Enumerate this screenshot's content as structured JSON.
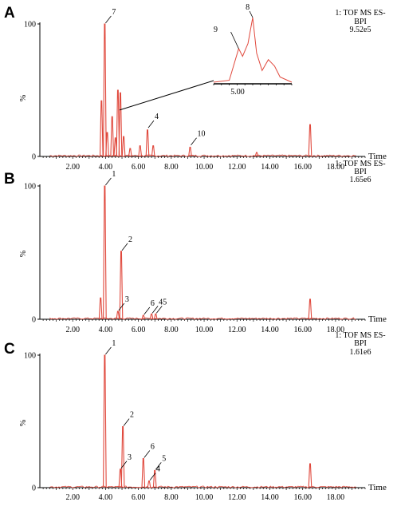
{
  "chart_data": [
    {
      "type": "line",
      "panel_label": "A",
      "info_lines": [
        "1: TOF MS ES-",
        "BPI",
        "9.52e5"
      ],
      "xlabel": "Time",
      "ylabel": "%",
      "xlim": [
        0,
        19.8
      ],
      "ylim": [
        0,
        100
      ],
      "x_ticks": [
        "2.00",
        "4.00",
        "6.00",
        "8.00",
        "10.00",
        "12.00",
        "14.00",
        "16.00",
        "18.00"
      ],
      "y_ticks": [
        "0",
        "100"
      ],
      "peaks": [
        {
          "x": 3.75,
          "y": 42
        },
        {
          "x": 3.95,
          "y": 100
        },
        {
          "x": 4.1,
          "y": 18
        },
        {
          "x": 4.4,
          "y": 30
        },
        {
          "x": 4.6,
          "y": 14
        },
        {
          "x": 4.75,
          "y": 50
        },
        {
          "x": 4.9,
          "y": 48
        },
        {
          "x": 5.1,
          "y": 15
        },
        {
          "x": 5.5,
          "y": 6
        },
        {
          "x": 6.1,
          "y": 8
        },
        {
          "x": 6.55,
          "y": 20
        },
        {
          "x": 6.9,
          "y": 8
        },
        {
          "x": 9.15,
          "y": 7
        },
        {
          "x": 13.2,
          "y": 3
        },
        {
          "x": 16.45,
          "y": 24
        }
      ],
      "peak_labels": [
        {
          "text": "7",
          "x": 3.95,
          "y": 100
        },
        {
          "text": "4",
          "x": 6.55,
          "y": 21
        },
        {
          "text": "10",
          "x": 9.15,
          "y": 8
        }
      ],
      "inset": {
        "xlabel": "5.00",
        "peak_labels": [
          "8",
          "9"
        ],
        "curve": [
          [
            0,
            0
          ],
          [
            0.2,
            3
          ],
          [
            0.32,
            52
          ],
          [
            0.37,
            40
          ],
          [
            0.44,
            60
          ],
          [
            0.5,
            100
          ],
          [
            0.55,
            45
          ],
          [
            0.62,
            18
          ],
          [
            0.7,
            35
          ],
          [
            0.78,
            25
          ],
          [
            0.85,
            8
          ],
          [
            1,
            0
          ]
        ]
      }
    },
    {
      "type": "line",
      "panel_label": "B",
      "info_lines": [
        "1: TOF MS ES-",
        "BPI",
        "1.65e6"
      ],
      "xlabel": "Time",
      "ylabel": "%",
      "xlim": [
        0,
        19.8
      ],
      "ylim": [
        0,
        100
      ],
      "x_ticks": [
        "2.00",
        "4.00",
        "6.00",
        "8.00",
        "10.00",
        "12.00",
        "14.00",
        "16.00",
        "18.00"
      ],
      "y_ticks": [
        "0",
        "100"
      ],
      "peaks": [
        {
          "x": 3.7,
          "y": 16
        },
        {
          "x": 3.95,
          "y": 100
        },
        {
          "x": 4.75,
          "y": 6
        },
        {
          "x": 4.95,
          "y": 51
        },
        {
          "x": 6.3,
          "y": 3
        },
        {
          "x": 6.8,
          "y": 4
        },
        {
          "x": 7.05,
          "y": 4
        },
        {
          "x": 16.45,
          "y": 15
        }
      ],
      "peak_labels": [
        {
          "text": "1",
          "x": 3.95,
          "y": 100
        },
        {
          "text": "2",
          "x": 4.95,
          "y": 51
        },
        {
          "text": "3",
          "x": 4.75,
          "y": 6
        },
        {
          "text": "6",
          "x": 6.3,
          "y": 3
        },
        {
          "text": "4",
          "x": 6.8,
          "y": 4
        },
        {
          "text": "5",
          "x": 7.05,
          "y": 4
        }
      ]
    },
    {
      "type": "line",
      "panel_label": "C",
      "info_lines": [
        "1: TOF MS ES-",
        "BPI",
        "1.61e6"
      ],
      "xlabel": "Time",
      "ylabel": "%",
      "xlim": [
        0,
        19.8
      ],
      "ylim": [
        0,
        100
      ],
      "x_ticks": [
        "2.00",
        "4.00",
        "6.00",
        "8.00",
        "10.00",
        "12.00",
        "14.00",
        "16.00",
        "18.00"
      ],
      "y_ticks": [
        "0",
        "100"
      ],
      "peaks": [
        {
          "x": 3.95,
          "y": 100
        },
        {
          "x": 4.9,
          "y": 14
        },
        {
          "x": 5.05,
          "y": 46
        },
        {
          "x": 6.3,
          "y": 22
        },
        {
          "x": 6.65,
          "y": 5
        },
        {
          "x": 7.0,
          "y": 13
        },
        {
          "x": 16.45,
          "y": 18
        }
      ],
      "peak_labels": [
        {
          "text": "1",
          "x": 3.95,
          "y": 100
        },
        {
          "text": "2",
          "x": 5.05,
          "y": 46
        },
        {
          "text": "3",
          "x": 4.9,
          "y": 14
        },
        {
          "text": "6",
          "x": 6.3,
          "y": 22
        },
        {
          "text": "4",
          "x": 6.65,
          "y": 5
        },
        {
          "text": "5",
          "x": 7.0,
          "y": 13
        }
      ]
    }
  ]
}
